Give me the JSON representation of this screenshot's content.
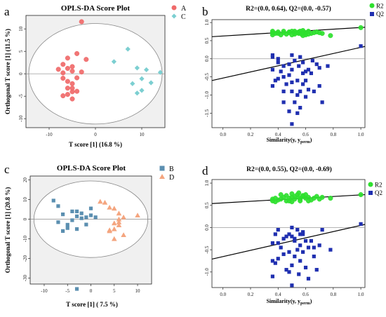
{
  "chart_data": [
    {
      "panel_letter": "a",
      "type": "scatter",
      "title": "OPLS-DA Score Plot",
      "xlabel": "T score [1] (16.8 %)",
      "ylabel": "Orthogonal T score [1] (11.5 %)",
      "xlim": [
        -15,
        15
      ],
      "ylim": [
        -12,
        13
      ],
      "xticks": [
        -10,
        0,
        10
      ],
      "yticks": [
        -10,
        -5,
        0,
        5,
        10
      ],
      "grid": false,
      "legend_position": "top-right",
      "ellipse": {
        "cx": 0,
        "cy": 0,
        "rx": 14.4,
        "ry": 11.2
      },
      "series": [
        {
          "name": "A",
          "marker": "circle",
          "color": "#f06a6a",
          "x": [
            -3,
            -4,
            -6,
            -2,
            -7,
            -5,
            -3,
            -8,
            -6,
            -7,
            -5,
            -4,
            -6,
            -7,
            -5,
            -6,
            -5,
            -4,
            -6,
            -5,
            -7,
            -5
          ],
          "y": [
            11.6,
            4.5,
            3.5,
            3.2,
            2.1,
            1.6,
            0.4,
            1.0,
            1.2,
            0.2,
            0.6,
            -0.9,
            -1.7,
            -1.0,
            -2.2,
            -3.2,
            -4.0,
            -3.9,
            -4.6,
            -5.6,
            -4.9,
            -3.2
          ]
        },
        {
          "name": "C",
          "marker": "diamond",
          "color": "#7ccfd1",
          "x": [
            7,
            4,
            9,
            11,
            14,
            10,
            8,
            12,
            10,
            9
          ],
          "y": [
            5.5,
            2.7,
            1.3,
            0.9,
            0.3,
            -1.1,
            -2.2,
            -2.0,
            -3.7,
            -4.3
          ]
        }
      ]
    },
    {
      "panel_letter": "b",
      "type": "scatter",
      "title": "R2=(0.0, 0.64), Q2=(0.0, -0.57)",
      "xlabel": "Similarity(y, y_perm)",
      "ylabel": "",
      "xlim": [
        -0.08,
        1.03
      ],
      "ylim": [
        -1.9,
        1.08
      ],
      "xticks": [
        0.0,
        0.2,
        0.4,
        0.6,
        0.8,
        1.0
      ],
      "yticks": [
        -1.5,
        -1.0,
        -0.5,
        0.0,
        0.5,
        1.0
      ],
      "grid": false,
      "legend_position": "top-right",
      "zero_line": 0,
      "series": [
        {
          "name": "R2",
          "marker": "circle",
          "color": "#2ee02e",
          "x": [
            0.36,
            0.36,
            0.38,
            0.4,
            0.44,
            0.48,
            0.5,
            0.52,
            0.55,
            0.56,
            0.58,
            0.6,
            0.6,
            0.64,
            0.7,
            0.36,
            0.4,
            0.42,
            0.46,
            0.48,
            0.52,
            0.54,
            0.57,
            0.6,
            0.62,
            0.66,
            0.72,
            0.78,
            0.44,
            0.5,
            0.55,
            0.58,
            0.62,
            0.68,
            0.58,
            0.52,
            1.0
          ],
          "y": [
            0.72,
            0.66,
            0.7,
            0.74,
            0.72,
            0.74,
            0.76,
            0.72,
            0.7,
            0.76,
            0.74,
            0.72,
            0.66,
            0.7,
            0.72,
            0.76,
            0.7,
            0.66,
            0.68,
            0.72,
            0.76,
            0.72,
            0.68,
            0.7,
            0.76,
            0.72,
            0.7,
            0.64,
            0.76,
            0.66,
            0.74,
            0.78,
            0.68,
            0.74,
            0.64,
            0.68,
            0.86
          ]
        },
        {
          "name": "Q2",
          "marker": "square",
          "color": "#1f2fb0",
          "x": [
            0.36,
            0.36,
            0.36,
            0.4,
            0.4,
            0.42,
            0.44,
            0.44,
            0.46,
            0.48,
            0.48,
            0.5,
            0.5,
            0.5,
            0.52,
            0.52,
            0.54,
            0.55,
            0.56,
            0.56,
            0.58,
            0.58,
            0.6,
            0.62,
            0.62,
            0.64,
            0.66,
            0.7,
            0.72,
            0.36,
            0.38,
            0.4,
            0.44,
            0.48,
            0.5,
            0.54,
            0.58,
            0.6,
            0.65,
            0.68,
            0.76,
            0.5,
            0.56,
            0.6,
            0.7,
            0.54,
            0.44,
            1.0
          ],
          "y": [
            -0.75,
            -0.3,
            0.1,
            -0.1,
            -0.55,
            -0.35,
            -0.2,
            -1.2,
            -0.7,
            -0.45,
            -1.45,
            -0.3,
            -0.9,
            -1.8,
            -0.05,
            -1.2,
            -0.6,
            -0.2,
            -0.9,
            -1.35,
            -0.1,
            -0.7,
            -1.05,
            -0.3,
            -0.85,
            -0.4,
            -0.9,
            -0.25,
            -1.2,
            0.05,
            -0.6,
            0.0,
            -0.5,
            -0.15,
            -0.65,
            -1.0,
            -0.4,
            -0.6,
            -0.05,
            -0.15,
            -0.2,
            0.1,
            0.05,
            -0.35,
            -0.75,
            -1.5,
            -0.9,
            0.35
          ]
        }
      ],
      "fit_lines": [
        {
          "series": "R2",
          "x": [
            -0.08,
            1.03
          ],
          "y": [
            0.61,
            0.87
          ]
        },
        {
          "series": "Q2",
          "x": [
            -0.08,
            1.03
          ],
          "y": [
            -0.6,
            0.34
          ]
        }
      ]
    },
    {
      "panel_letter": "c",
      "type": "scatter",
      "title": "OPLS-DA Score Plot",
      "xlabel": "T score [1] ( 7.5 %)",
      "ylabel": "Orthogonal T score [1] (20.8 %)",
      "xlim": [
        -13,
        13
      ],
      "ylim": [
        -33,
        22
      ],
      "xticks": [
        -10,
        -5,
        0,
        5,
        10
      ],
      "yticks": [
        -30,
        -20,
        -10,
        0,
        10,
        20
      ],
      "grid": false,
      "legend_position": "top-right",
      "ellipse": {
        "cx": 0,
        "cy": 0,
        "rx": 12.2,
        "ry": 19.5
      },
      "series": [
        {
          "name": "B",
          "marker": "square",
          "color": "#5b8fb0",
          "x": [
            -8,
            -7,
            -6,
            -7,
            -5,
            -4,
            -3,
            -2,
            -1,
            0,
            -4,
            -3,
            -2,
            -6,
            -5,
            -3,
            -3,
            -1,
            0,
            1
          ],
          "y": [
            9.5,
            6.7,
            2.5,
            -1.5,
            -2.8,
            -0.5,
            1.5,
            0.5,
            -2.7,
            5.5,
            4,
            4,
            3,
            -6,
            -4.5,
            -5,
            -35.5,
            1,
            2,
            1
          ]
        },
        {
          "name": "D",
          "marker": "triangle",
          "color": "#f4a57f",
          "x": [
            2,
            3,
            4,
            5,
            6,
            7,
            6,
            5,
            6,
            5,
            4,
            10,
            7,
            5,
            4,
            6
          ],
          "y": [
            9,
            8.5,
            6,
            5.5,
            3,
            1,
            0,
            -2,
            -3,
            -5,
            -6,
            2,
            -8,
            -10,
            -5.5,
            -1.5
          ]
        }
      ]
    },
    {
      "panel_letter": "d",
      "type": "scatter",
      "title": "R2=(0.0, 0.55), Q2=(0.0, -0.69)",
      "xlabel": "Similarity(y, y_perm)",
      "ylabel": "",
      "xlim": [
        -0.08,
        1.03
      ],
      "ylim": [
        -1.35,
        1.08
      ],
      "xticks": [
        0.0,
        0.2,
        0.4,
        0.6,
        0.8,
        1.0
      ],
      "yticks": [
        -1.0,
        -0.5,
        0.0,
        0.5,
        1.0
      ],
      "grid": false,
      "legend_position": "top-right",
      "zero_line": 0,
      "series": [
        {
          "name": "R2",
          "marker": "circle",
          "color": "#2ee02e",
          "x": [
            0.36,
            0.36,
            0.38,
            0.4,
            0.44,
            0.46,
            0.48,
            0.5,
            0.52,
            0.55,
            0.56,
            0.58,
            0.6,
            0.62,
            0.66,
            0.7,
            0.72,
            0.78,
            0.38,
            0.42,
            0.46,
            0.5,
            0.54,
            0.56,
            0.6,
            0.64,
            0.68,
            0.42,
            0.48,
            0.52,
            0.58,
            0.62,
            0.55,
            0.5,
            1.0
          ],
          "y": [
            0.6,
            0.64,
            0.66,
            0.62,
            0.68,
            0.72,
            0.66,
            0.76,
            0.7,
            0.78,
            0.64,
            0.72,
            0.74,
            0.68,
            0.66,
            0.64,
            0.68,
            0.66,
            0.58,
            0.64,
            0.6,
            0.68,
            0.74,
            0.6,
            0.66,
            0.62,
            0.7,
            0.74,
            0.6,
            0.64,
            0.7,
            0.6,
            0.68,
            0.58,
            0.74
          ]
        },
        {
          "name": "Q2",
          "marker": "square",
          "color": "#1f2fb0",
          "x": [
            0.36,
            0.36,
            0.38,
            0.4,
            0.4,
            0.42,
            0.44,
            0.46,
            0.48,
            0.48,
            0.5,
            0.5,
            0.52,
            0.52,
            0.54,
            0.55,
            0.56,
            0.56,
            0.58,
            0.58,
            0.6,
            0.62,
            0.62,
            0.64,
            0.66,
            0.7,
            0.72,
            0.78,
            0.38,
            0.4,
            0.44,
            0.46,
            0.5,
            0.52,
            0.56,
            0.6,
            0.66,
            0.68,
            0.48,
            0.54,
            0.58,
            0.5,
            0.36,
            1.0
          ],
          "y": [
            -0.35,
            -1.1,
            -0.15,
            -0.05,
            -0.7,
            -0.45,
            -0.25,
            -0.95,
            -0.15,
            -0.55,
            -0.85,
            -1.3,
            -0.3,
            -0.65,
            -0.05,
            -1.05,
            -0.4,
            -0.75,
            -0.15,
            -0.55,
            -0.9,
            -0.45,
            -1.15,
            -0.3,
            -0.65,
            -0.4,
            -0.05,
            -0.5,
            -0.8,
            -0.35,
            -0.6,
            -0.2,
            0.0,
            -0.25,
            -0.15,
            -0.3,
            -0.45,
            -0.95,
            -1.0,
            -0.5,
            -0.1,
            -0.2,
            -0.75,
            0.08
          ]
        }
      ],
      "fit_lines": [
        {
          "series": "R2",
          "x": [
            -0.08,
            1.03
          ],
          "y": [
            0.54,
            0.74
          ]
        },
        {
          "series": "Q2",
          "x": [
            -0.08,
            1.03
          ],
          "y": [
            -0.71,
            0.07
          ]
        }
      ]
    }
  ]
}
